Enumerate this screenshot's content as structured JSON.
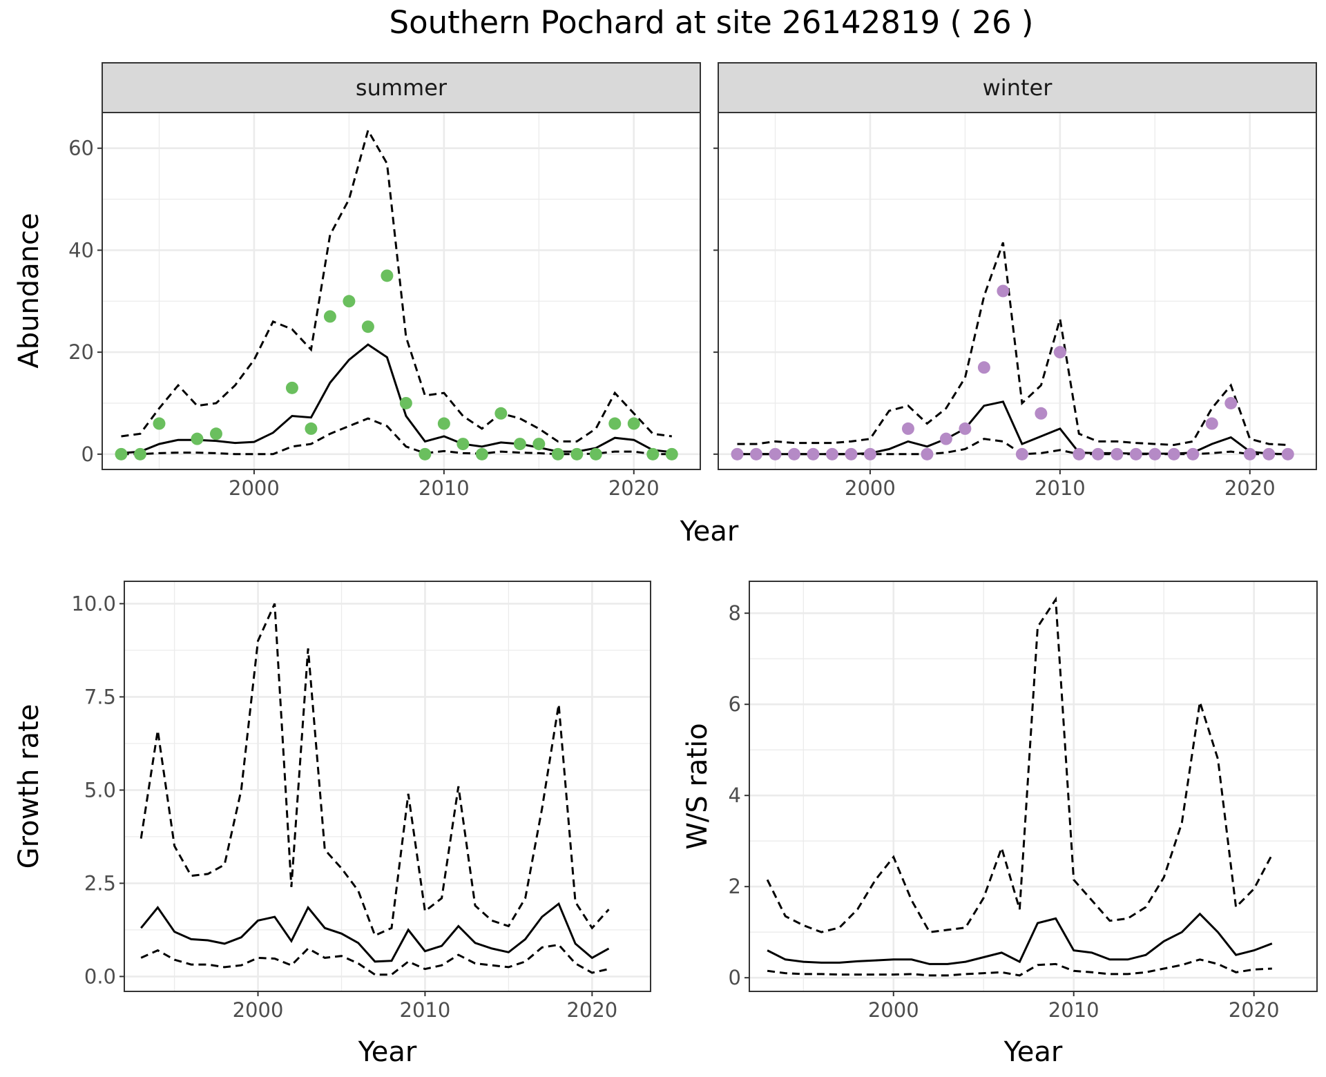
{
  "title": "Southern Pochard at site 26142819 ( 26 )",
  "colors": {
    "summer": "#6abf5e",
    "winter": "#b58ac6",
    "line": "#000000"
  },
  "chart_data": [
    {
      "id": "abundance",
      "type": "line",
      "facets": [
        "summer",
        "winter"
      ],
      "xlabel": "Year",
      "ylabel": "Abundance",
      "xlim": [
        1992,
        2023.5
      ],
      "ylim": [
        -3,
        67
      ],
      "x_ticks": [
        2000,
        2010,
        2020
      ],
      "y_ticks": [
        0,
        20,
        40,
        60
      ],
      "grid": true,
      "panels": {
        "summer": {
          "years": [
            1993,
            1994,
            1995,
            1996,
            1997,
            1998,
            1999,
            2000,
            2001,
            2002,
            2003,
            2004,
            2005,
            2006,
            2007,
            2008,
            2009,
            2010,
            2011,
            2012,
            2013,
            2014,
            2015,
            2016,
            2017,
            2018,
            2019,
            2020,
            2021,
            2022
          ],
          "observed": [
            0,
            0,
            6,
            null,
            3,
            4,
            null,
            null,
            null,
            13,
            5,
            27,
            30,
            25,
            35,
            10,
            0,
            6,
            2,
            0,
            8,
            2,
            2,
            0,
            0,
            0,
            6,
            6,
            0,
            0
          ],
          "median": [
            0.2,
            0.5,
            2,
            2.8,
            2.8,
            2.6,
            2.2,
            2.4,
            4.2,
            7.5,
            7.2,
            14,
            18.5,
            21.5,
            19,
            7.5,
            2.5,
            3.5,
            2,
            1.5,
            2.3,
            2,
            1.3,
            0.5,
            0.5,
            1.2,
            3.2,
            2.8,
            0.8,
            0.4
          ],
          "lower": [
            0,
            0,
            0.2,
            0.3,
            0.3,
            0.2,
            0,
            0,
            0,
            1.5,
            2,
            4,
            5.5,
            7,
            5.5,
            1.5,
            0.2,
            0.6,
            0.2,
            0.1,
            0.5,
            0.3,
            0.2,
            0,
            0,
            0.1,
            0.5,
            0.5,
            0,
            0
          ],
          "upper": [
            3.5,
            4,
            9,
            13.5,
            9.5,
            10,
            13.5,
            18.5,
            26,
            24.5,
            20.5,
            43,
            50,
            63.5,
            57,
            23,
            11.5,
            12,
            7.5,
            5,
            8,
            7,
            5,
            2.5,
            2.5,
            5,
            12,
            8,
            4,
            3.5
          ]
        },
        "winter": {
          "years": [
            1993,
            1994,
            1995,
            1996,
            1997,
            1998,
            1999,
            2000,
            2001,
            2002,
            2003,
            2004,
            2005,
            2006,
            2007,
            2008,
            2009,
            2010,
            2011,
            2012,
            2013,
            2014,
            2015,
            2016,
            2017,
            2018,
            2019,
            2020,
            2021,
            2022
          ],
          "observed": [
            0,
            0,
            0,
            0,
            0,
            0,
            0,
            0,
            null,
            5,
            0,
            3,
            5,
            17,
            32,
            0,
            8,
            20,
            0,
            0,
            0,
            0,
            0,
            0,
            0,
            6,
            10,
            0,
            0,
            0
          ],
          "median": [
            0,
            0,
            0,
            0,
            0,
            0,
            0,
            0.2,
            1,
            2.5,
            1.5,
            3,
            5,
            9.5,
            10.3,
            2,
            3.5,
            5,
            0.3,
            0.2,
            0.2,
            0.1,
            0.1,
            0.1,
            0.3,
            2,
            3.3,
            0.5,
            0.1,
            0
          ],
          "lower": [
            0,
            0,
            0,
            0,
            0,
            0,
            0,
            0,
            0,
            0,
            0,
            0.3,
            1,
            3,
            2.5,
            0,
            0.2,
            0.8,
            0,
            0,
            0,
            0,
            0,
            0,
            0,
            0.2,
            0.5,
            0,
            0,
            0
          ],
          "upper": [
            2,
            2,
            2.5,
            2.2,
            2.2,
            2.2,
            2.5,
            3,
            8.5,
            9.5,
            6,
            9,
            15,
            31,
            41.5,
            10,
            13.5,
            26.5,
            4,
            2.5,
            2.5,
            2.2,
            2,
            1.8,
            2.5,
            9,
            13.5,
            3,
            2,
            1.8
          ]
        }
      }
    },
    {
      "id": "growth",
      "type": "line",
      "xlabel": "Year",
      "ylabel": "Growth rate",
      "xlim": [
        1992,
        2023.5
      ],
      "ylim": [
        -0.4,
        10.6
      ],
      "x_ticks": [
        2000,
        2010,
        2020
      ],
      "y_ticks": [
        0.0,
        2.5,
        5.0,
        7.5,
        10.0
      ],
      "y_tick_labels": [
        "0.0",
        "2.5",
        "5.0",
        "7.5",
        "10.0"
      ],
      "grid": true,
      "years": [
        1993,
        1994,
        1995,
        1996,
        1997,
        1998,
        1999,
        2000,
        2001,
        2002,
        2003,
        2004,
        2005,
        2006,
        2007,
        2008,
        2009,
        2010,
        2011,
        2012,
        2013,
        2014,
        2015,
        2016,
        2017,
        2018,
        2019,
        2020,
        2021
      ],
      "median": [
        1.3,
        1.85,
        1.2,
        1.0,
        0.97,
        0.88,
        1.05,
        1.5,
        1.6,
        0.95,
        1.85,
        1.3,
        1.15,
        0.9,
        0.4,
        0.42,
        1.25,
        0.68,
        0.82,
        1.35,
        0.9,
        0.75,
        0.65,
        1.0,
        1.6,
        1.95,
        0.88,
        0.5,
        0.75
      ],
      "lower": [
        0.5,
        0.7,
        0.45,
        0.32,
        0.32,
        0.25,
        0.3,
        0.5,
        0.48,
        0.3,
        0.75,
        0.5,
        0.55,
        0.35,
        0.05,
        0.05,
        0.4,
        0.2,
        0.3,
        0.58,
        0.35,
        0.3,
        0.25,
        0.4,
        0.78,
        0.85,
        0.35,
        0.1,
        0.2
      ],
      "upper": [
        3.7,
        6.6,
        3.5,
        2.7,
        2.75,
        3.0,
        5.0,
        9.0,
        10.0,
        2.4,
        8.8,
        3.4,
        2.9,
        2.3,
        1.1,
        1.3,
        4.9,
        1.75,
        2.1,
        5.1,
        1.9,
        1.5,
        1.35,
        2.1,
        4.5,
        7.3,
        2.0,
        1.3,
        1.8
      ]
    },
    {
      "id": "ws_ratio",
      "type": "line",
      "xlabel": "Year",
      "ylabel": "W/S ratio",
      "xlim": [
        1992,
        2023.5
      ],
      "ylim": [
        -0.3,
        8.7
      ],
      "x_ticks": [
        2000,
        2010,
        2020
      ],
      "y_ticks": [
        0,
        2,
        4,
        6,
        8
      ],
      "grid": true,
      "years": [
        1993,
        1994,
        1995,
        1996,
        1997,
        1998,
        1999,
        2000,
        2001,
        2002,
        2003,
        2004,
        2005,
        2006,
        2007,
        2008,
        2009,
        2010,
        2011,
        2012,
        2013,
        2014,
        2015,
        2016,
        2017,
        2018,
        2019,
        2020,
        2021
      ],
      "median": [
        0.6,
        0.4,
        0.35,
        0.33,
        0.33,
        0.36,
        0.38,
        0.4,
        0.4,
        0.3,
        0.3,
        0.35,
        0.45,
        0.55,
        0.35,
        1.2,
        1.3,
        0.6,
        0.55,
        0.4,
        0.4,
        0.5,
        0.8,
        1.0,
        1.4,
        1.0,
        0.5,
        0.6,
        0.75
      ],
      "lower": [
        0.15,
        0.1,
        0.08,
        0.08,
        0.07,
        0.07,
        0.07,
        0.07,
        0.08,
        0.05,
        0.05,
        0.08,
        0.1,
        0.12,
        0.05,
        0.28,
        0.3,
        0.15,
        0.12,
        0.08,
        0.08,
        0.12,
        0.2,
        0.28,
        0.4,
        0.3,
        0.12,
        0.18,
        0.2
      ],
      "upper": [
        2.15,
        1.35,
        1.15,
        1.0,
        1.1,
        1.5,
        2.15,
        2.65,
        1.7,
        1.0,
        1.05,
        1.1,
        1.75,
        2.85,
        1.5,
        7.7,
        8.3,
        2.15,
        1.7,
        1.25,
        1.3,
        1.55,
        2.2,
        3.4,
        6.05,
        4.8,
        1.55,
        1.95,
        2.7
      ]
    }
  ]
}
